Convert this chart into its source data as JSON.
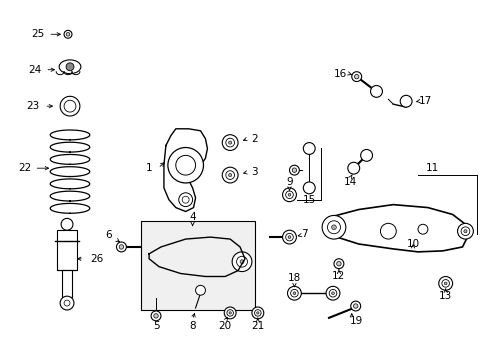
{
  "bg_color": "#ffffff",
  "fig_width": 4.89,
  "fig_height": 3.6,
  "dpi": 100,
  "label_fontsize": 7.5,
  "line_color": "#222222"
}
